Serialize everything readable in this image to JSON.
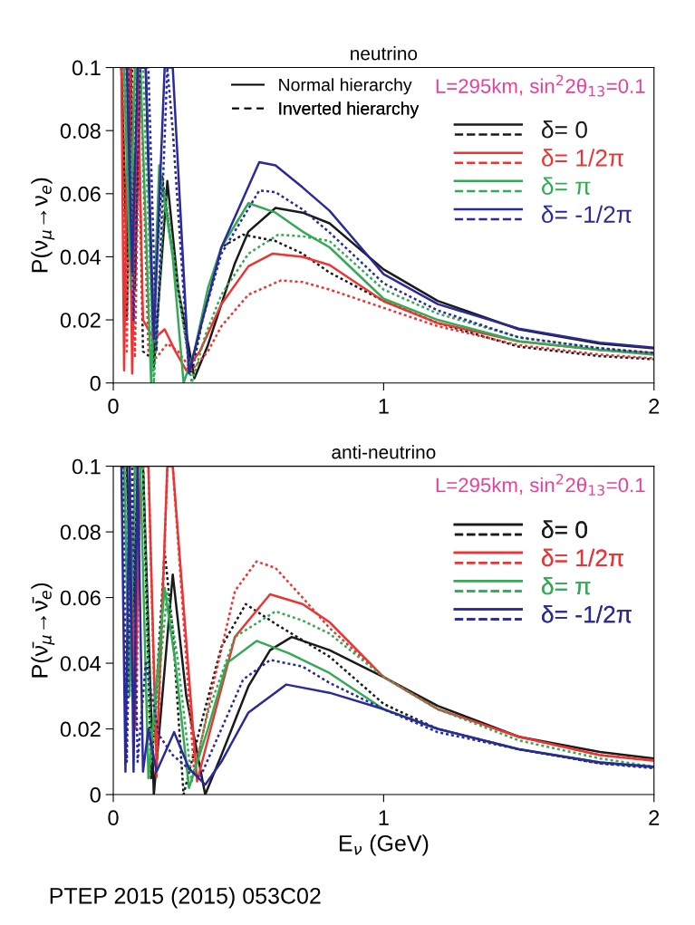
{
  "chart_data": [
    {
      "type": "line",
      "title": "neutrino",
      "ylabel": "P(ν$_{μ}$→ν$_{e}$)",
      "xlim": [
        0,
        2
      ],
      "xticks": [
        0,
        1,
        2
      ],
      "ylim": [
        0,
        0.1
      ],
      "yticks": [
        0,
        0.02,
        0.04,
        0.06,
        0.08,
        0.1
      ],
      "grid": false,
      "legend": "top right",
      "marker": "none",
      "annotations": [
        "L=295km, sin$^{2}$2θ$_{13}$=0.1",
        "Normal hierarchy",
        "Inverted hierarchy"
      ],
      "series": [
        {
          "name": "δ= 0",
          "color": "#1a1a1a",
          "line_style": "solid",
          "x": [
            0.03,
            0.05,
            0.065,
            0.08,
            0.1,
            0.12,
            0.15,
            0.2,
            0.24,
            0.3,
            0.35,
            0.4,
            0.45,
            0.5,
            0.6,
            0.7,
            0.8,
            1.0,
            1.2,
            1.5,
            1.8,
            2.0
          ],
          "values": [
            0.1,
            0.04,
            0.1,
            0.03,
            0.1,
            0.1,
            0.005,
            0.064,
            0.03,
            0.0015,
            0.012,
            0.025,
            0.038,
            0.048,
            0.0555,
            0.054,
            0.0506,
            0.036,
            0.026,
            0.017,
            0.0125,
            0.011
          ]
        },
        {
          "color": "#1a1a1a",
          "line_style": "dotted",
          "x": [
            0.03,
            0.05,
            0.07,
            0.09,
            0.11,
            0.14,
            0.18,
            0.22,
            0.29,
            0.33,
            0.4,
            0.48,
            0.6,
            0.7,
            0.8,
            1.0,
            1.2,
            1.5,
            1.8,
            2.0
          ],
          "values": [
            0.1,
            0.02,
            0.1,
            0.1,
            0.01,
            0.008,
            0.066,
            0.04,
            0.003,
            0.02,
            0.043,
            0.047,
            0.045,
            0.041,
            0.035,
            0.026,
            0.019,
            0.0115,
            0.0085,
            0.0075
          ]
        },
        {
          "name": "δ= 1/2π",
          "color": "#ee3333",
          "line_style": "solid",
          "x": [
            0.03,
            0.04,
            0.055,
            0.07,
            0.09,
            0.11,
            0.15,
            0.19,
            0.23,
            0.27,
            0.32,
            0.4,
            0.5,
            0.59,
            0.7,
            0.8,
            1.0,
            1.2,
            1.5,
            1.8,
            2.0
          ],
          "values": [
            0.1,
            0.004,
            0.1,
            0.003,
            0.1,
            0.02,
            0.014,
            0.017,
            0.01,
            0.004,
            0.01,
            0.025,
            0.037,
            0.041,
            0.04,
            0.0374,
            0.0259,
            0.019,
            0.0132,
            0.0105,
            0.0095
          ]
        },
        {
          "color": "#ee3333",
          "line_style": "dotted",
          "x": [
            0.035,
            0.05,
            0.065,
            0.08,
            0.1,
            0.13,
            0.16,
            0.2,
            0.24,
            0.29,
            0.35,
            0.4,
            0.5,
            0.62,
            0.7,
            0.8,
            1.0,
            1.2,
            1.5,
            1.8,
            2.0
          ],
          "values": [
            0.1,
            0.01,
            0.1,
            0.008,
            0.1,
            0.01,
            0.008,
            0.0125,
            0.01,
            0.004,
            0.01,
            0.018,
            0.028,
            0.0325,
            0.032,
            0.0296,
            0.0238,
            0.018,
            0.012,
            0.009,
            0.0078
          ]
        },
        {
          "name": "δ= π",
          "color": "#33aa55",
          "line_style": "solid",
          "x": [
            0.04,
            0.06,
            0.08,
            0.1,
            0.14,
            0.17,
            0.22,
            0.26,
            0.3,
            0.35,
            0.4,
            0.5,
            0.6,
            0.7,
            0.8,
            1.0,
            1.2,
            1.5,
            1.8,
            2.0
          ],
          "values": [
            0.1,
            0.04,
            0.1,
            0.1,
            0.0,
            0.069,
            0.04,
            0.0,
            0.01,
            0.03,
            0.043,
            0.057,
            0.054,
            0.048,
            0.043,
            0.0267,
            0.02,
            0.0132,
            0.0105,
            0.009
          ]
        },
        {
          "color": "#33aa55",
          "line_style": "dotted",
          "x": [
            0.045,
            0.065,
            0.085,
            0.11,
            0.15,
            0.19,
            0.24,
            0.29,
            0.34,
            0.4,
            0.5,
            0.61,
            0.7,
            0.8,
            1.0,
            1.2,
            1.5,
            1.8,
            2.0
          ],
          "values": [
            0.1,
            0.03,
            0.1,
            0.1,
            0.0,
            0.061,
            0.03,
            0.0,
            0.015,
            0.028,
            0.041,
            0.047,
            0.0465,
            0.045,
            0.0296,
            0.022,
            0.0145,
            0.011,
            0.0095
          ]
        },
        {
          "name": "δ= -1/2π",
          "color": "#2a2a9a",
          "line_style": "solid",
          "x": [
            0.05,
            0.07,
            0.09,
            0.12,
            0.15,
            0.19,
            0.22,
            0.28,
            0.33,
            0.4,
            0.54,
            0.6,
            0.7,
            0.8,
            1.0,
            1.2,
            1.5,
            1.8,
            2.0
          ],
          "values": [
            0.1,
            0.035,
            0.1,
            0.1,
            0.014,
            0.1,
            0.1,
            0.0033,
            0.02,
            0.043,
            0.07,
            0.069,
            0.062,
            0.0546,
            0.0345,
            0.025,
            0.0172,
            0.0128,
            0.0112
          ]
        },
        {
          "color": "#2a2a9a",
          "line_style": "dotted",
          "x": [
            0.055,
            0.075,
            0.1,
            0.13,
            0.16,
            0.2,
            0.22,
            0.28,
            0.33,
            0.4,
            0.54,
            0.6,
            0.7,
            0.8,
            1.0,
            1.2,
            1.5,
            1.8,
            2.0
          ],
          "values": [
            0.1,
            0.02,
            0.1,
            0.1,
            0.01,
            0.1,
            0.08,
            0.003,
            0.02,
            0.041,
            0.061,
            0.0605,
            0.055,
            0.0477,
            0.0316,
            0.023,
            0.0144,
            0.011,
            0.0095
          ]
        }
      ]
    },
    {
      "type": "line",
      "title": "anti-neutrino",
      "xlabel": "E$_{ν}$ (GeV)",
      "ylabel": "P(ν̄$_{μ}$→ν̄$_{e}$)",
      "xlim": [
        0,
        2
      ],
      "xticks": [
        0,
        1,
        2
      ],
      "ylim": [
        0,
        0.1
      ],
      "yticks": [
        0,
        0.02,
        0.04,
        0.06,
        0.08,
        0.1
      ],
      "grid": false,
      "legend": "top right",
      "marker": "none",
      "annotations": [
        "L=295km, sin$^{2}$2θ$_{13}$=0.1",
        "PTEP 2015 (2015) 053C02"
      ],
      "series": [
        {
          "name": "δ= 0",
          "color": "#1a1a1a",
          "line_style": "solid",
          "x": [
            0.05,
            0.07,
            0.09,
            0.11,
            0.15,
            0.22,
            0.27,
            0.34,
            0.4,
            0.5,
            0.58,
            0.66,
            0.8,
            1.0,
            1.2,
            1.5,
            1.8,
            2.0
          ],
          "values": [
            0.1,
            0.04,
            0.1,
            0.1,
            0.0,
            0.067,
            0.03,
            0.0,
            0.012,
            0.033,
            0.044,
            0.048,
            0.044,
            0.0358,
            0.027,
            0.0176,
            0.013,
            0.011
          ]
        },
        {
          "color": "#1a1a1a",
          "line_style": "dotted",
          "x": [
            0.04,
            0.06,
            0.08,
            0.11,
            0.14,
            0.19,
            0.22,
            0.26,
            0.32,
            0.4,
            0.49,
            0.6,
            0.7,
            0.8,
            1.0,
            1.2,
            1.5,
            1.8,
            2.0
          ],
          "values": [
            0.1,
            0.03,
            0.1,
            0.1,
            0.005,
            0.074,
            0.05,
            0.0,
            0.02,
            0.045,
            0.058,
            0.052,
            0.047,
            0.042,
            0.0276,
            0.02,
            0.0138,
            0.0095,
            0.0083
          ]
        },
        {
          "name": "δ= 1/2π",
          "color": "#ee3333",
          "line_style": "solid",
          "x": [
            0.06,
            0.08,
            0.1,
            0.13,
            0.16,
            0.2,
            0.22,
            0.31,
            0.36,
            0.45,
            0.58,
            0.7,
            0.8,
            1.0,
            1.2,
            1.5,
            1.8,
            2.0
          ],
          "values": [
            0.1,
            0.02,
            0.1,
            0.1,
            0.01,
            0.1,
            0.1,
            0.004,
            0.02,
            0.048,
            0.061,
            0.058,
            0.0525,
            0.0358,
            0.026,
            0.0176,
            0.012,
            0.0103
          ]
        },
        {
          "color": "#ee3333",
          "line_style": "dotted",
          "x": [
            0.06,
            0.085,
            0.1,
            0.13,
            0.16,
            0.2,
            0.22,
            0.3,
            0.36,
            0.45,
            0.53,
            0.6,
            0.7,
            0.8,
            1.0,
            1.2,
            1.5,
            1.8,
            2.0
          ],
          "values": [
            0.1,
            0.02,
            0.1,
            0.1,
            0.005,
            0.1,
            0.1,
            0.006,
            0.03,
            0.062,
            0.071,
            0.069,
            0.06,
            0.0507,
            0.0358,
            0.026,
            0.0176,
            0.012,
            0.0105
          ]
        },
        {
          "name": "δ= π",
          "color": "#33aa55",
          "line_style": "solid",
          "x": [
            0.04,
            0.06,
            0.08,
            0.1,
            0.13,
            0.19,
            0.23,
            0.28,
            0.35,
            0.42,
            0.53,
            0.65,
            0.8,
            1.0,
            1.2,
            1.5,
            1.8,
            2.0
          ],
          "values": [
            0.1,
            0.03,
            0.1,
            0.1,
            0.005,
            0.063,
            0.04,
            0.002,
            0.02,
            0.04,
            0.0468,
            0.043,
            0.037,
            0.026,
            0.02,
            0.0138,
            0.0098,
            0.0083
          ]
        },
        {
          "color": "#33aa55",
          "line_style": "dotted",
          "x": [
            0.045,
            0.065,
            0.085,
            0.11,
            0.14,
            0.2,
            0.24,
            0.29,
            0.35,
            0.45,
            0.6,
            0.7,
            0.8,
            1.0,
            1.2,
            1.5,
            1.8,
            2.0
          ],
          "values": [
            0.1,
            0.035,
            0.1,
            0.1,
            0.01,
            0.062,
            0.04,
            0.004,
            0.025,
            0.048,
            0.0558,
            0.053,
            0.049,
            0.0358,
            0.026,
            0.0165,
            0.011,
            0.0085
          ]
        },
        {
          "name": "δ= -1/2π",
          "color": "#2a2a9a",
          "line_style": "solid",
          "x": [
            0.03,
            0.045,
            0.06,
            0.075,
            0.09,
            0.11,
            0.13,
            0.16,
            0.225,
            0.28,
            0.34,
            0.4,
            0.5,
            0.64,
            0.8,
            1.0,
            1.2,
            1.5,
            1.8,
            2.0
          ],
          "values": [
            0.1,
            0.007,
            0.1,
            0.007,
            0.1,
            0.007,
            0.02,
            0.007,
            0.019,
            0.008,
            0.003,
            0.01,
            0.025,
            0.0335,
            0.031,
            0.026,
            0.02,
            0.0138,
            0.0098,
            0.0085
          ]
        },
        {
          "color": "#2a2a9a",
          "line_style": "dotted",
          "x": [
            0.035,
            0.05,
            0.07,
            0.09,
            0.12,
            0.17,
            0.22,
            0.32,
            0.4,
            0.48,
            0.58,
            0.7,
            0.8,
            1.0,
            1.2,
            1.5,
            1.8,
            2.0
          ],
          "values": [
            0.1,
            0.01,
            0.1,
            0.01,
            0.04,
            0.018,
            0.012,
            0.005,
            0.02,
            0.035,
            0.041,
            0.039,
            0.034,
            0.026,
            0.019,
            0.0138,
            0.0095,
            0.008
          ]
        }
      ]
    }
  ]
}
